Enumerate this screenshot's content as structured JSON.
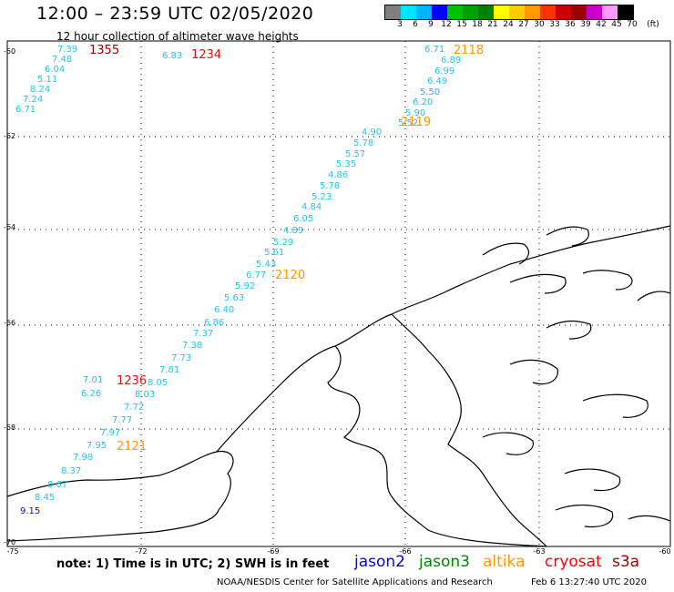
{
  "header": {
    "title": "12:00 – 23:59 UTC 02/05/2020",
    "subtitle": "12 hour collection of altimeter wave heights"
  },
  "color_scale": {
    "colors": [
      "#7f7f7f",
      "#00e5ff",
      "#00b5ff",
      "#0000ff",
      "#00c000",
      "#00a000",
      "#008000",
      "#ffff00",
      "#ffcc00",
      "#ff9900",
      "#ff3300",
      "#cc0000",
      "#990000",
      "#cc00cc",
      "#ff99ff",
      "#000000"
    ],
    "labels": [
      "3",
      "6",
      "9",
      "12",
      "15",
      "18",
      "21",
      "24",
      "27",
      "30",
      "33",
      "36",
      "39",
      "42",
      "45",
      "70",
      "(ft)"
    ]
  },
  "axes": {
    "lat_labels": [
      "-60",
      "-62",
      "-64",
      "-66",
      "-68",
      "-70"
    ],
    "lon_labels": [
      "-75",
      "-72",
      "-69",
      "-66",
      "-63",
      "-60"
    ]
  },
  "tracks": [
    {
      "time": "1355",
      "color": "#990000",
      "points": [
        {
          "v": "7.39",
          "c": "#22c4f0"
        },
        {
          "v": "7.48",
          "c": "#22c4f0"
        },
        {
          "v": "6.04",
          "c": "#22c4f0"
        },
        {
          "v": "5.11",
          "c": "#22c4f0"
        },
        {
          "v": "8.24",
          "c": "#22c4f0"
        },
        {
          "v": "7.24",
          "c": "#22c4f0"
        },
        {
          "v": "6.71",
          "c": "#22c4f0"
        }
      ]
    },
    {
      "time": "1234",
      "color": "#e01010",
      "points": [
        {
          "v": "6.83",
          "c": "#22c4f0"
        }
      ]
    },
    {
      "time": "2118",
      "color": "#ff9900",
      "points": [
        {
          "v": "6.71",
          "c": "#22c4f0"
        },
        {
          "v": "6.89",
          "c": "#22c4f0"
        },
        {
          "v": "6.99",
          "c": "#22c4f0"
        },
        {
          "v": "6.49",
          "c": "#22c4f0"
        },
        {
          "v": "5.50",
          "c": "#22c4f0"
        },
        {
          "v": "6.20",
          "c": "#22c4f0"
        },
        {
          "v": "5.90",
          "c": "#22c4f0"
        },
        {
          "v": "5.52",
          "c": "#22c4f0"
        }
      ]
    },
    {
      "time": "2119",
      "color": "#ff9900",
      "points": [
        {
          "v": "4.90",
          "c": "#22c4f0"
        },
        {
          "v": "5.78",
          "c": "#22c4f0"
        },
        {
          "v": "5.57",
          "c": "#22c4f0"
        },
        {
          "v": "5.35",
          "c": "#22c4f0"
        },
        {
          "v": "4.86",
          "c": "#22c4f0"
        },
        {
          "v": "5.78",
          "c": "#22c4f0"
        },
        {
          "v": "5.23",
          "c": "#22c4f0"
        },
        {
          "v": "4.84",
          "c": "#22c4f0"
        },
        {
          "v": "6.05",
          "c": "#22c4f0"
        },
        {
          "v": "4.89",
          "c": "#22c4f0"
        },
        {
          "v": "5.29",
          "c": "#22c4f0"
        },
        {
          "v": "5.61",
          "c": "#22c4f0"
        },
        {
          "v": "5.43",
          "c": "#22c4f0"
        },
        {
          "v": "6.77",
          "c": "#22c4f0"
        }
      ]
    },
    {
      "time": "2120",
      "color": "#ff9900",
      "points": [
        {
          "v": "5.92",
          "c": "#22c4f0"
        },
        {
          "v": "5.63",
          "c": "#22c4f0"
        },
        {
          "v": "6.40",
          "c": "#22c4f0"
        },
        {
          "v": "6.86",
          "c": "#22c4f0"
        },
        {
          "v": "7.37",
          "c": "#22c4f0"
        },
        {
          "v": "7.38",
          "c": "#22c4f0"
        },
        {
          "v": "7.73",
          "c": "#22c4f0"
        },
        {
          "v": "7.81",
          "c": "#22c4f0"
        },
        {
          "v": "8.05",
          "c": "#22c4f0"
        },
        {
          "v": "8.03",
          "c": "#22c4f0"
        },
        {
          "v": "7.72",
          "c": "#22c4f0"
        },
        {
          "v": "7.77",
          "c": "#22c4f0"
        },
        {
          "v": "7.97",
          "c": "#22c4f0"
        },
        {
          "v": "7.95",
          "c": "#22c4f0"
        }
      ]
    },
    {
      "time": "1236",
      "color": "#e01010",
      "points": [
        {
          "v": "7.01",
          "c": "#22c4f0"
        },
        {
          "v": "6.26",
          "c": "#22c4f0"
        }
      ]
    },
    {
      "time": "2121",
      "color": "#ff9900",
      "points": [
        {
          "v": "7.98",
          "c": "#22c4f0"
        },
        {
          "v": "8.37",
          "c": "#22c4f0"
        },
        {
          "v": "8.67",
          "c": "#22c4f0"
        },
        {
          "v": "8.45",
          "c": "#22c4f0"
        },
        {
          "v": "9.15",
          "c": "#1010c0"
        }
      ]
    }
  ],
  "note": "note:  1) Time is in UTC; 2) SWH is in feet",
  "satellites": [
    {
      "name": "jason2",
      "color": "#0000ff"
    },
    {
      "name": "jason3",
      "color": "#008800"
    },
    {
      "name": "altika",
      "color": "#ff9900"
    },
    {
      "name": "cryosat",
      "color": "#ff0000"
    },
    {
      "name": "s3a",
      "color": "#990000"
    }
  ],
  "footer": {
    "credit": "NOAA/NESDIS Center for Satellite Applications and Research",
    "date": "Feb  6 13:27:40 UTC 2020"
  }
}
